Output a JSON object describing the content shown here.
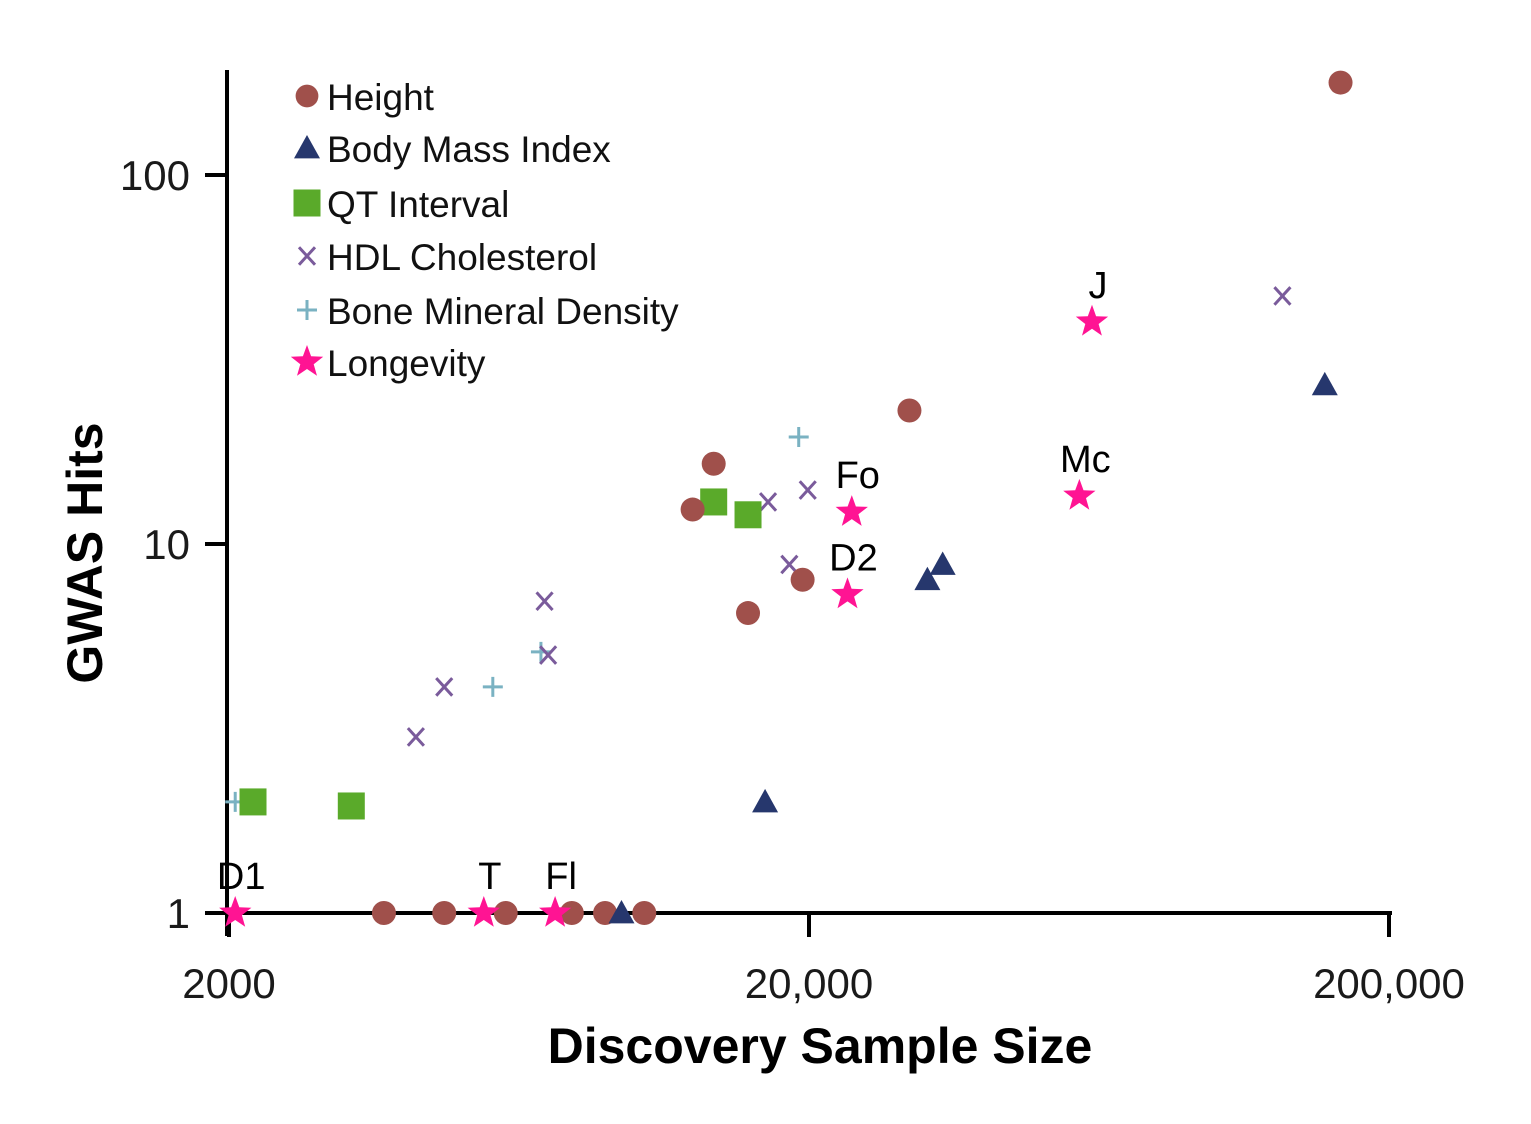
{
  "chart_data": {
    "type": "scatter",
    "title": "",
    "xlabel": "Discovery Sample Size",
    "ylabel": "GWAS Hits",
    "x_scale": "log",
    "y_scale": "log",
    "xlim": [
      2000,
      200000
    ],
    "ylim": [
      1,
      190
    ],
    "x_ticks": [
      {
        "value": 2000,
        "label": "2000"
      },
      {
        "value": 20000,
        "label": "20,000"
      },
      {
        "value": 200000,
        "label": "200,000"
      }
    ],
    "y_ticks": [
      {
        "value": 1,
        "label": "1"
      },
      {
        "value": 10,
        "label": "10"
      },
      {
        "value": 100,
        "label": "100"
      }
    ],
    "grid": false,
    "legend_position": "top-left",
    "series": [
      {
        "name": "Height",
        "marker": "circle",
        "color": "#a0504b",
        "points": [
          {
            "x": 3700,
            "y": 1
          },
          {
            "x": 4700,
            "y": 1
          },
          {
            "x": 6000,
            "y": 1
          },
          {
            "x": 7800,
            "y": 1
          },
          {
            "x": 8900,
            "y": 1
          },
          {
            "x": 10400,
            "y": 1
          },
          {
            "x": 12600,
            "y": 12.4
          },
          {
            "x": 13700,
            "y": 16.5
          },
          {
            "x": 15700,
            "y": 6.5
          },
          {
            "x": 19500,
            "y": 8
          },
          {
            "x": 29800,
            "y": 23
          },
          {
            "x": 165000,
            "y": 178
          }
        ]
      },
      {
        "name": "Body Mass Index",
        "marker": "triangle",
        "color": "#26376d",
        "points": [
          {
            "x": 9500,
            "y": 1
          },
          {
            "x": 16800,
            "y": 2
          },
          {
            "x": 32000,
            "y": 8
          },
          {
            "x": 34000,
            "y": 8.8
          },
          {
            "x": 155000,
            "y": 27
          }
        ]
      },
      {
        "name": "QT Interval",
        "marker": "square",
        "color": "#5aaa2a",
        "points": [
          {
            "x": 2200,
            "y": 2
          },
          {
            "x": 3250,
            "y": 1.95
          },
          {
            "x": 13700,
            "y": 13
          },
          {
            "x": 15700,
            "y": 12
          }
        ]
      },
      {
        "name": "HDL Cholesterol",
        "marker": "x",
        "color": "#7a5b9b",
        "points": [
          {
            "x": 4200,
            "y": 3
          },
          {
            "x": 4700,
            "y": 4.1
          },
          {
            "x": 7000,
            "y": 7
          },
          {
            "x": 7100,
            "y": 5
          },
          {
            "x": 17000,
            "y": 13
          },
          {
            "x": 18500,
            "y": 8.8
          },
          {
            "x": 19900,
            "y": 14
          },
          {
            "x": 131000,
            "y": 47
          }
        ]
      },
      {
        "name": "Bone Mineral Density",
        "marker": "plus",
        "color": "#7ab2c2",
        "points": [
          {
            "x": 2050,
            "y": 2
          },
          {
            "x": 5700,
            "y": 4.1
          },
          {
            "x": 6900,
            "y": 5.1
          },
          {
            "x": 19200,
            "y": 19.5
          }
        ]
      },
      {
        "name": "Longevity",
        "marker": "star",
        "color": "#ff1493",
        "points": [
          {
            "x": 2050,
            "y": 1,
            "label": "D1"
          },
          {
            "x": 5500,
            "y": 1,
            "label": "T"
          },
          {
            "x": 7300,
            "y": 1,
            "label": "Fl"
          },
          {
            "x": 23300,
            "y": 7.3,
            "label": "D2"
          },
          {
            "x": 23700,
            "y": 12.2,
            "label": "Fo"
          },
          {
            "x": 58500,
            "y": 13.5,
            "label": "Mc"
          },
          {
            "x": 61500,
            "y": 40,
            "label": "J"
          }
        ]
      }
    ]
  }
}
